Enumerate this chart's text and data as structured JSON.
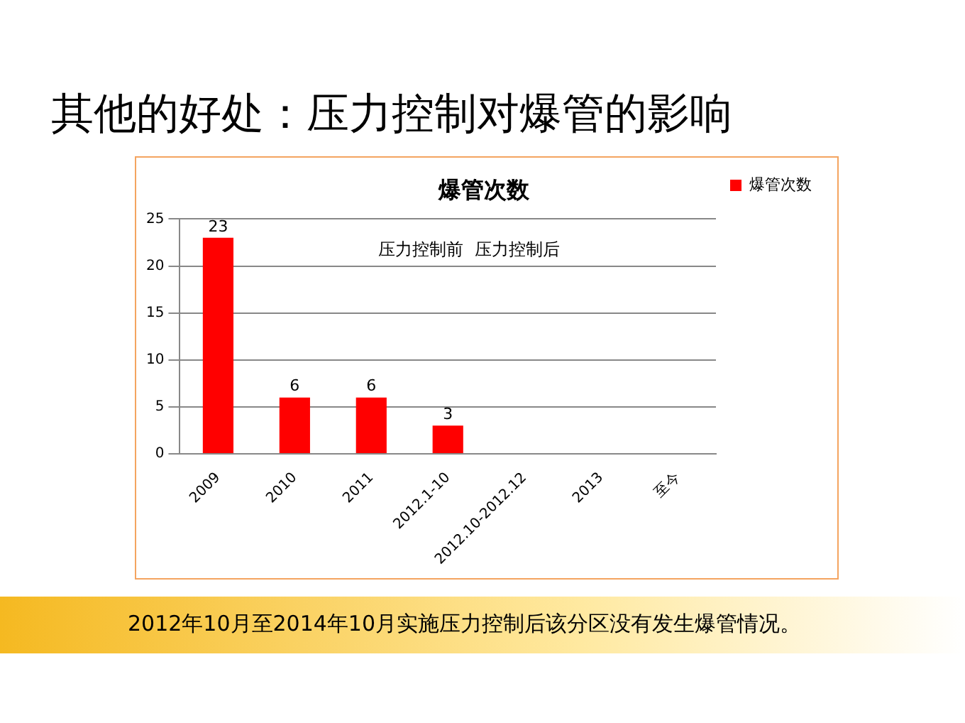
{
  "chart_data": {
    "type": "bar",
    "title": "其他的好处：压力控制对爆管的影响",
    "subtitle": "爆管次数",
    "categories": [
      "2009",
      "2010",
      "2011",
      "2012.1-10",
      "2012.10-2012.12",
      "2013",
      "至今"
    ],
    "series": [
      {
        "name": "爆管次数",
        "color": "#ff0000",
        "values": [
          23,
          6,
          6,
          3,
          null,
          null,
          null
        ]
      }
    ],
    "ylim": [
      0,
      25
    ],
    "yticks": [
      0,
      5,
      10,
      15,
      20,
      25
    ],
    "grid": "y",
    "legend": "top right",
    "data_labels": true,
    "annotations": [
      "压力控制前",
      "压力控制后",
      "2012年10月至2014年10月实施压力控制后该分区没有发生爆管情况。"
    ]
  }
}
